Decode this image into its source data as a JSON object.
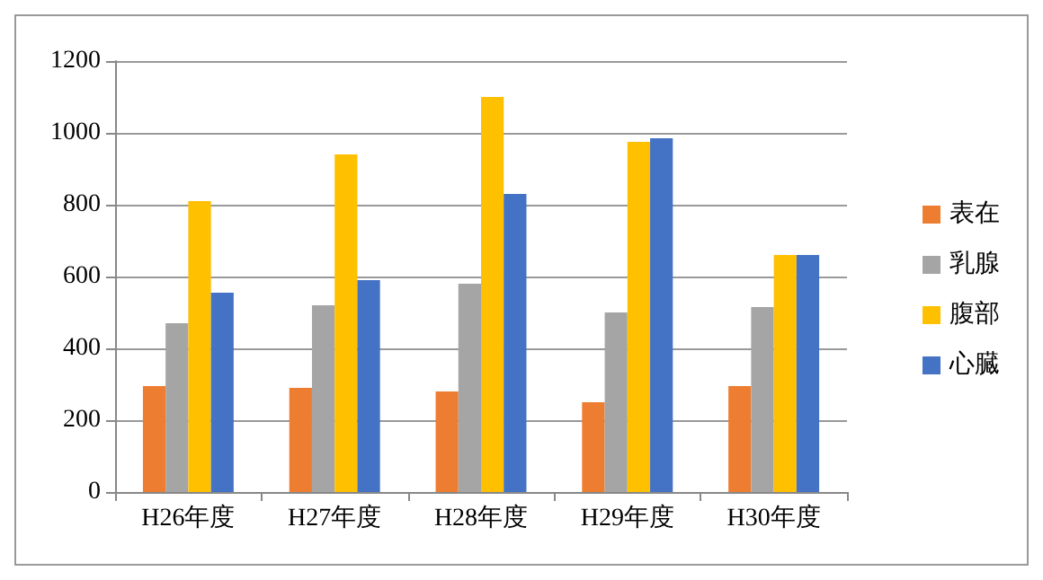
{
  "chart_data": {
    "type": "bar",
    "categories": [
      "H26年度",
      "H27年度",
      "H28年度",
      "H29年度",
      "H30年度"
    ],
    "series": [
      {
        "name": "表在",
        "color": "#ed7d31",
        "values": [
          295,
          290,
          280,
          250,
          295
        ]
      },
      {
        "name": "乳腺",
        "color": "#a5a5a5",
        "values": [
          470,
          520,
          580,
          500,
          515
        ]
      },
      {
        "name": "腹部",
        "color": "#ffc000",
        "values": [
          810,
          940,
          1100,
          975,
          660
        ]
      },
      {
        "name": "心臓",
        "color": "#4472c4",
        "values": [
          555,
          590,
          830,
          985,
          660
        ]
      }
    ],
    "ylim": [
      0,
      1200
    ],
    "yticks": [
      0,
      200,
      400,
      600,
      800,
      1000,
      1200
    ],
    "grid": "y",
    "legend": "right"
  }
}
